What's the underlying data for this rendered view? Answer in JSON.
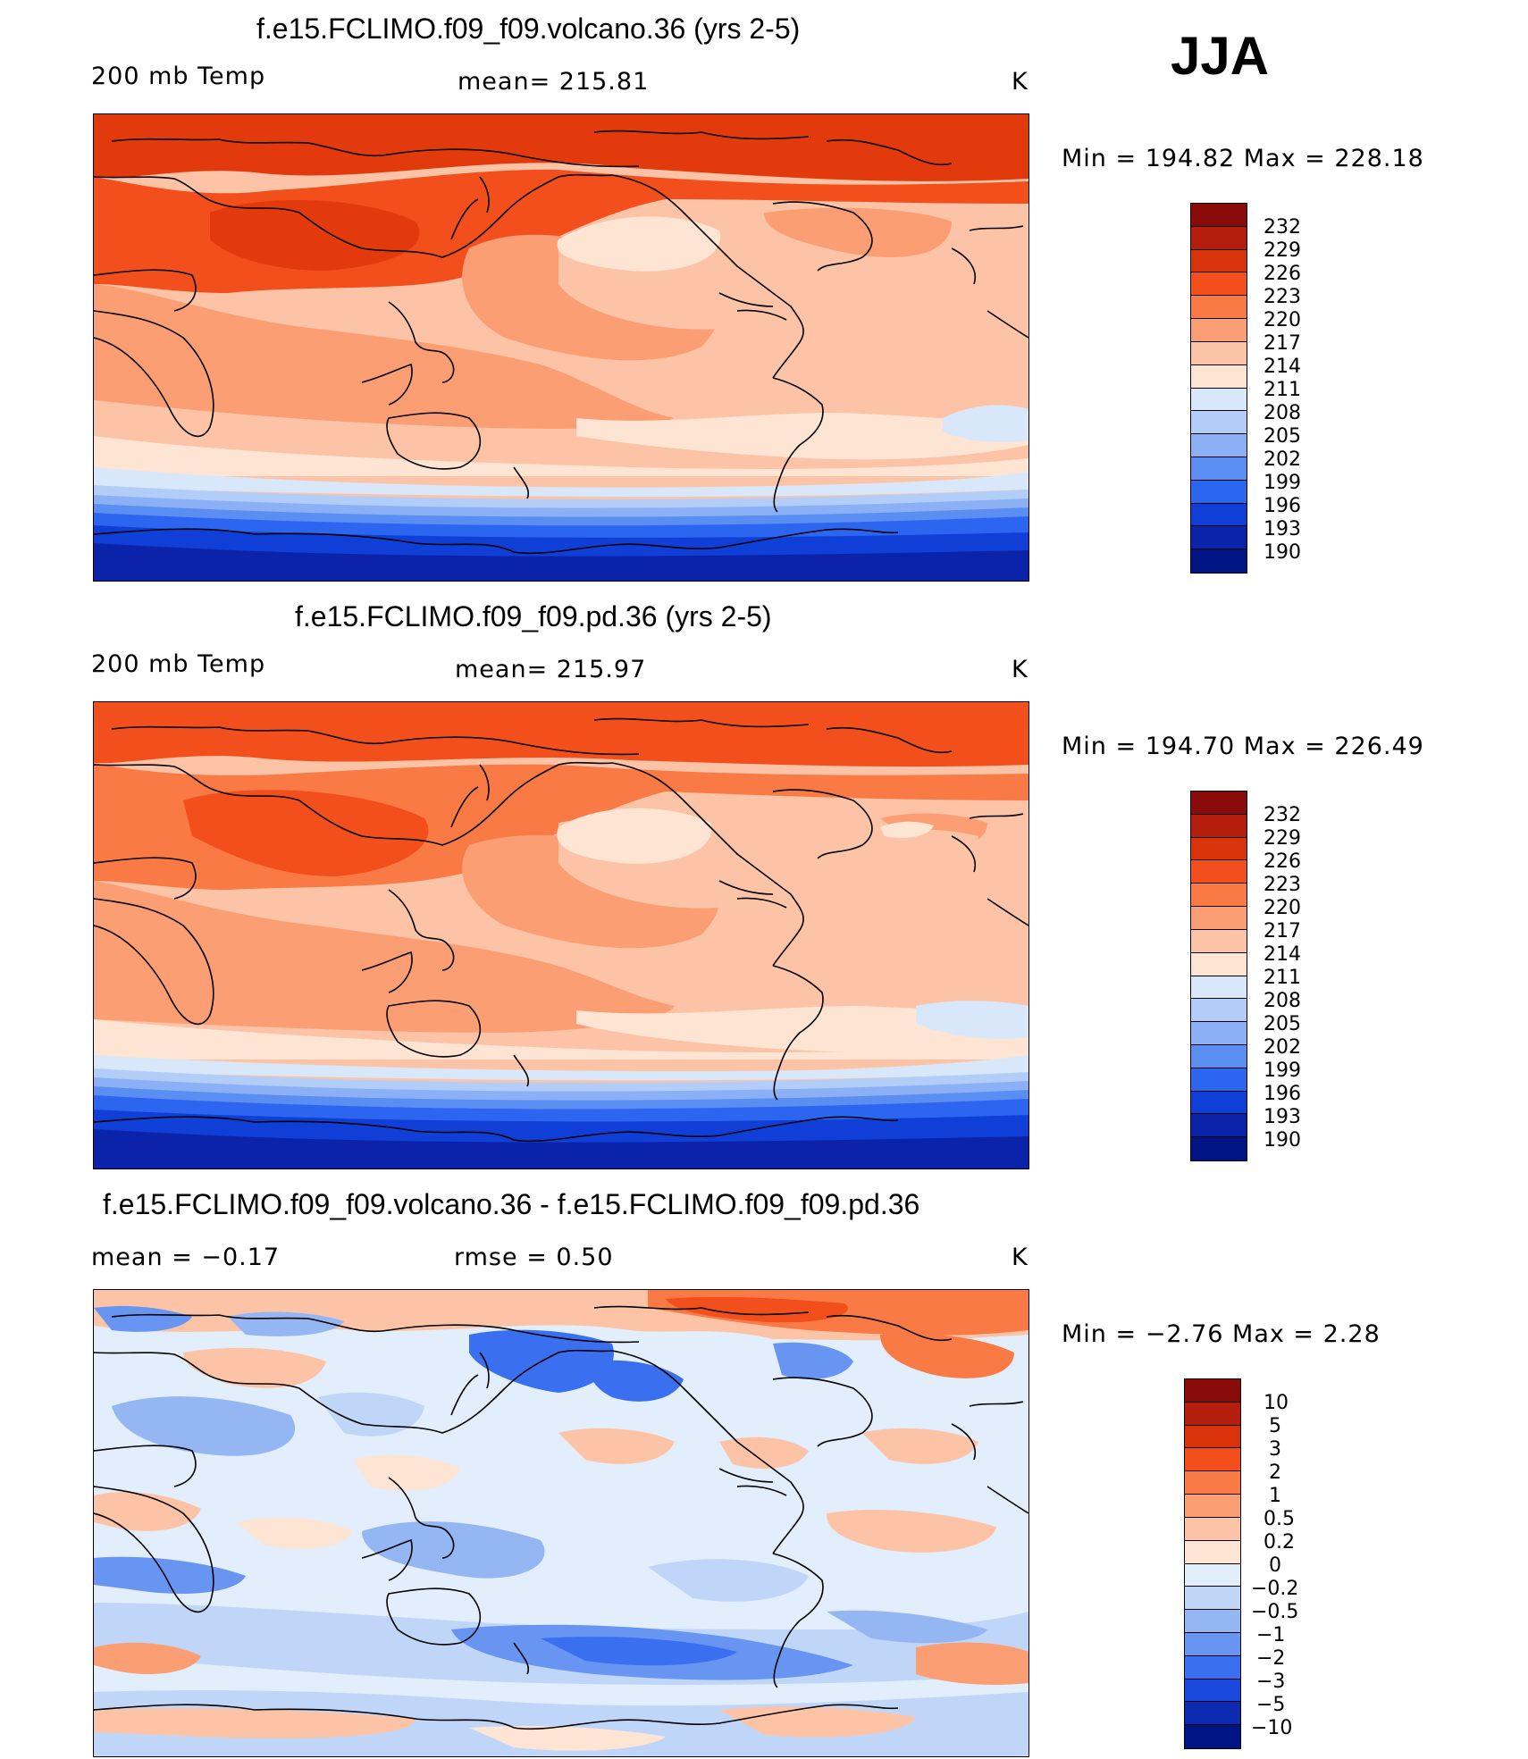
{
  "season": "JJA",
  "panels": [
    {
      "id": "volcano",
      "title": "f.e15.FCLIMO.f09_f09.volcano.36 (yrs 2-5)",
      "left": "200 mb Temp",
      "center": "mean=  215.81",
      "right": "K",
      "stats": "Min  =  194.82  Max  =  228.18"
    },
    {
      "id": "pd",
      "title": "f.e15.FCLIMO.f09_f09.pd.36 (yrs 2-5)",
      "left": "200 mb Temp",
      "center": "mean=  215.97",
      "right": "K",
      "stats": "Min  =  194.70  Max  =  226.49"
    },
    {
      "id": "diff",
      "title": "f.e15.FCLIMO.f09_f09.volcano.36 - f.e15.FCLIMO.f09_f09.pd.36",
      "left": "mean  =    −0.17",
      "center": "rmse  =     0.50",
      "right": "K",
      "stats": "Min  =    −2.76  Max  =      2.28"
    }
  ],
  "colorbars": {
    "temp": {
      "labels": [
        "232",
        "229",
        "226",
        "223",
        "220",
        "217",
        "214",
        "211",
        "208",
        "205",
        "202",
        "199",
        "196",
        "193",
        "190"
      ],
      "colors": [
        "#8b0a0a",
        "#b51d0c",
        "#d8330b",
        "#f24f1c",
        "#fa7a45",
        "#fc9e73",
        "#fdc3a6",
        "#fee4d3",
        "#d8e8fa",
        "#b2cdf7",
        "#8cb0f5",
        "#5a8ef2",
        "#2c66f0",
        "#0f3fd6",
        "#0a23a8",
        "#001585"
      ]
    },
    "diff": {
      "labels": [
        "10",
        "5",
        "3",
        "2",
        "1",
        "0.5",
        "0.2",
        "0",
        "−0.2",
        "−0.5",
        "−1",
        "−2",
        "−3",
        "−5",
        "−10"
      ],
      "colors": [
        "#8b0a0a",
        "#b51d0c",
        "#d8330b",
        "#f24f1c",
        "#fa7a45",
        "#fc9e73",
        "#fdc3a6",
        "#fee4d3",
        "#e2eefc",
        "#c0d6f9",
        "#94b7f4",
        "#6795f1",
        "#3a6ff0",
        "#1a48dc",
        "#0c2ab2",
        "#001585"
      ]
    }
  }
}
